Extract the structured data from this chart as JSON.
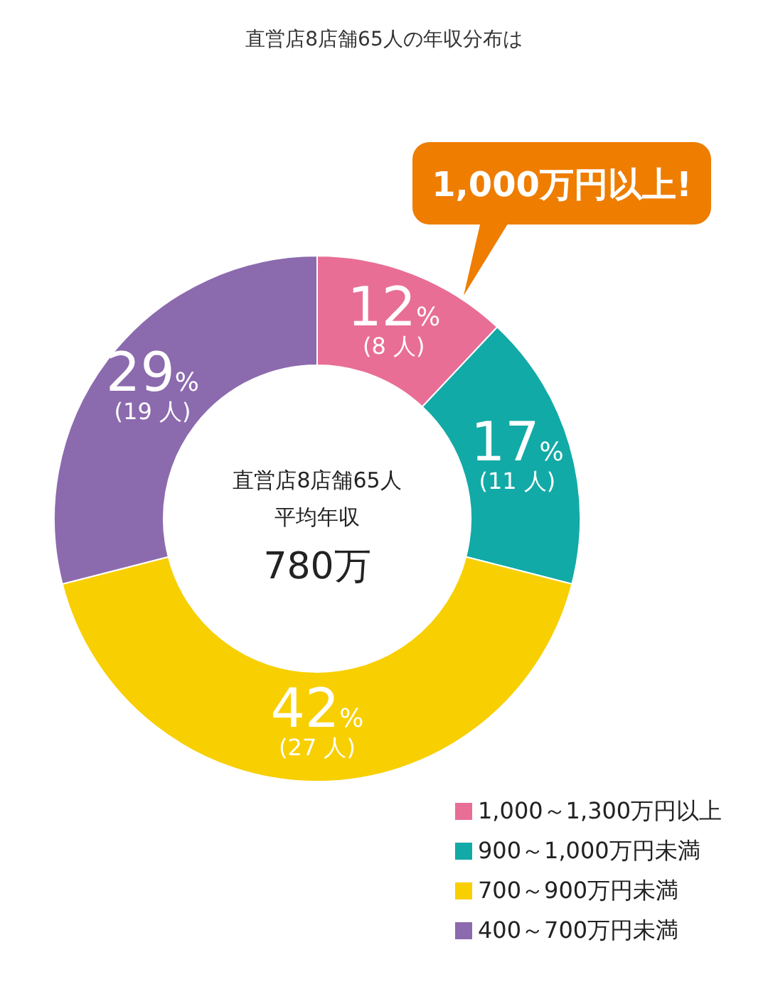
{
  "chart_data": {
    "type": "donut",
    "title": "直営店8店舗65人の年収分布は",
    "categories": [
      "1,000～1,300万円以上",
      "900～1,000万円未満",
      "700～900万円未満",
      "400～700万円未満"
    ],
    "values": [
      12,
      17,
      42,
      29
    ],
    "colors": [
      "#e86e96",
      "#12aaa6",
      "#f8cf00",
      "#8c6aae"
    ],
    "value_labels": [
      "12% (8 人)",
      "17% (11 人)",
      "42% (27 人)",
      "29% (19 人)"
    ],
    "annotations": [
      "1,000万円以上!",
      "直営店8店舗65人",
      "平均年収",
      "780万"
    ],
    "legend": "bottom right"
  }
}
